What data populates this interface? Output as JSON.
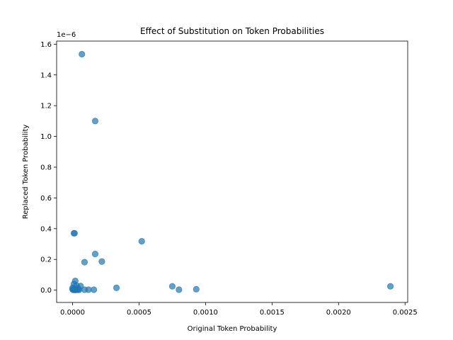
{
  "chart_data": {
    "type": "scatter",
    "title": "Effect of Substitution on Token Probabilities",
    "xlabel": "Original Token Probability",
    "ylabel": "Replaced Token Probability",
    "y_offset_text": "1e−6",
    "xlim": [
      -0.00012,
      0.00252
    ],
    "ylim": [
      -0.08,
      1.62
    ],
    "y_scale_factor": 1e-06,
    "x_ticks": [
      {
        "value": 0.0,
        "label": "0.0000"
      },
      {
        "value": 0.0005,
        "label": "0.0005"
      },
      {
        "value": 0.001,
        "label": "0.0010"
      },
      {
        "value": 0.0015,
        "label": "0.0015"
      },
      {
        "value": 0.002,
        "label": "0.0020"
      },
      {
        "value": 0.0025,
        "label": "0.0025"
      }
    ],
    "y_ticks": [
      {
        "value": 0.0,
        "label": "0.0"
      },
      {
        "value": 0.2,
        "label": "0.2"
      },
      {
        "value": 0.4,
        "label": "0.4"
      },
      {
        "value": 0.6,
        "label": "0.6"
      },
      {
        "value": 0.8,
        "label": "0.8"
      },
      {
        "value": 1.0,
        "label": "1.0"
      },
      {
        "value": 1.2,
        "label": "1.2"
      },
      {
        "value": 1.4,
        "label": "1.4"
      },
      {
        "value": 1.6,
        "label": "1.6"
      }
    ],
    "marker_color": "#1f77b4",
    "marker_alpha": 0.7,
    "grid": false,
    "legend": "none",
    "points": [
      {
        "x": 7e-05,
        "y": 1.535
      },
      {
        "x": 0.00017,
        "y": 1.1
      },
      {
        "x": 1e-05,
        "y": 0.37
      },
      {
        "x": 1.5e-05,
        "y": 0.37
      },
      {
        "x": 0.00052,
        "y": 0.318
      },
      {
        "x": 0.00017,
        "y": 0.235
      },
      {
        "x": 0.00022,
        "y": 0.186
      },
      {
        "x": 9e-05,
        "y": 0.182
      },
      {
        "x": 2e-05,
        "y": 0.06
      },
      {
        "x": 1e-05,
        "y": 0.04
      },
      {
        "x": 3e-05,
        "y": 0.03
      },
      {
        "x": 6e-05,
        "y": 0.027
      },
      {
        "x": 0.00075,
        "y": 0.025
      },
      {
        "x": 0.00239,
        "y": 0.025
      },
      {
        "x": 0.00033,
        "y": 0.015
      },
      {
        "x": 0.0,
        "y": 0.015
      },
      {
        "x": 1e-05,
        "y": 0.01
      },
      {
        "x": 4e-05,
        "y": 0.012
      },
      {
        "x": 2e-05,
        "y": 0.005
      },
      {
        "x": 3e-05,
        "y": 0.003
      },
      {
        "x": 0.0,
        "y": 0.005
      },
      {
        "x": 5e-05,
        "y": 0.003
      },
      {
        "x": 9e-05,
        "y": 0.003
      },
      {
        "x": 0.00012,
        "y": 0.003
      },
      {
        "x": 0.00016,
        "y": 0.003
      },
      {
        "x": 0.0008,
        "y": 0.003
      },
      {
        "x": 0.00093,
        "y": 0.006
      },
      {
        "x": 1e-05,
        "y": 0.002
      },
      {
        "x": 2e-05,
        "y": 0.001
      },
      {
        "x": 4e-05,
        "y": 0.002
      },
      {
        "x": 5e-06,
        "y": 0.002
      }
    ]
  }
}
